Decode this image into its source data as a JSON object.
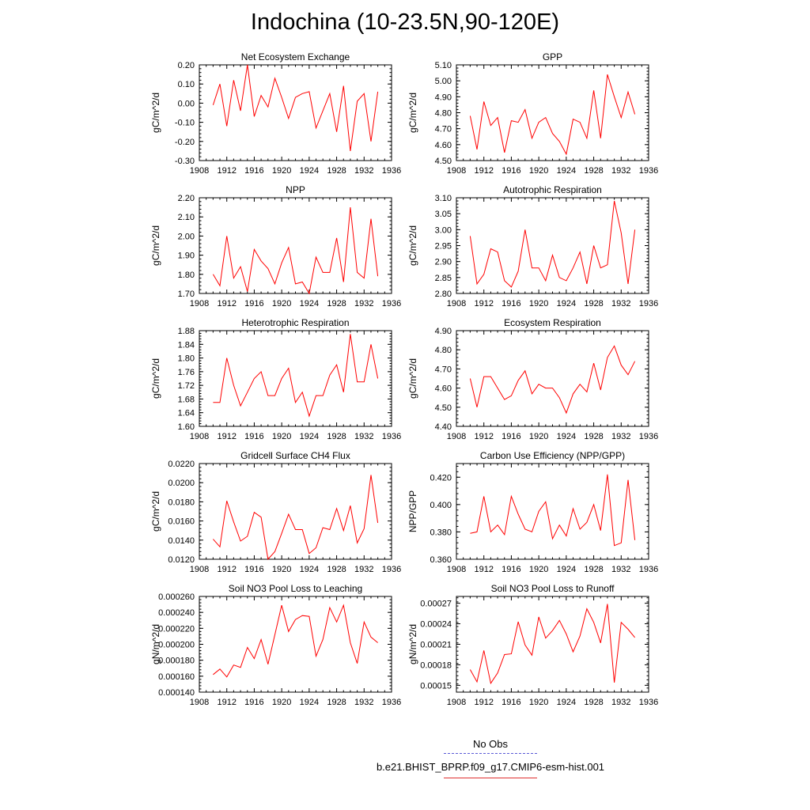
{
  "title": "Indochina (10-23.5N,90-120E)",
  "legend": {
    "obs_label": "No Obs",
    "model_label": "b.e21.BHIST_BPRP.f09_g17.CMIP6-esm-hist.001",
    "obs_color": "#5a5ad6",
    "model_color": "#ff0000"
  },
  "chart_data": [
    {
      "type": "line",
      "title": "Net Ecosystem Exchange",
      "ylabel": "gC/m^2/d",
      "xlim": [
        1908,
        1936
      ],
      "xticks": [
        1908,
        1912,
        1916,
        1920,
        1924,
        1928,
        1932,
        1936
      ],
      "ylim": [
        -0.3,
        0.2
      ],
      "yticks": [
        "-0.30",
        "-0.20",
        "-0.10",
        "0.00",
        "0.10",
        "0.20"
      ],
      "ytick_values": [
        -0.3,
        -0.2,
        -0.1,
        0.0,
        0.1,
        0.2
      ],
      "x": [
        1910,
        1911,
        1912,
        1913,
        1914,
        1915,
        1916,
        1917,
        1918,
        1919,
        1920,
        1921,
        1922,
        1923,
        1924,
        1925,
        1926,
        1927,
        1928,
        1929,
        1930,
        1931,
        1932,
        1933,
        1934
      ],
      "y": [
        -0.01,
        0.1,
        -0.12,
        0.12,
        -0.04,
        0.2,
        -0.07,
        0.04,
        -0.02,
        0.13,
        0.03,
        -0.08,
        0.03,
        0.05,
        0.06,
        -0.13,
        -0.04,
        0.05,
        -0.15,
        0.09,
        -0.25,
        0.01,
        0.05,
        -0.2,
        0.06
      ]
    },
    {
      "type": "line",
      "title": "GPP",
      "ylabel": "gC/m^2/d",
      "xlim": [
        1908,
        1936
      ],
      "xticks": [
        1908,
        1912,
        1916,
        1920,
        1924,
        1928,
        1932,
        1936
      ],
      "ylim": [
        4.5,
        5.1
      ],
      "yticks": [
        "4.50",
        "4.60",
        "4.70",
        "4.80",
        "4.90",
        "5.00",
        "5.10"
      ],
      "ytick_values": [
        4.5,
        4.6,
        4.7,
        4.8,
        4.9,
        5.0,
        5.1
      ],
      "x": [
        1910,
        1911,
        1912,
        1913,
        1914,
        1915,
        1916,
        1917,
        1918,
        1919,
        1920,
        1921,
        1922,
        1923,
        1924,
        1925,
        1926,
        1927,
        1928,
        1929,
        1930,
        1931,
        1932,
        1933,
        1934
      ],
      "y": [
        4.78,
        4.57,
        4.87,
        4.72,
        4.77,
        4.55,
        4.75,
        4.74,
        4.82,
        4.64,
        4.74,
        4.77,
        4.67,
        4.62,
        4.54,
        4.76,
        4.74,
        4.64,
        4.94,
        4.64,
        5.04,
        4.9,
        4.77,
        4.93,
        4.79
      ]
    },
    {
      "type": "line",
      "title": "NPP",
      "ylabel": "gC/m^2/d",
      "xlim": [
        1908,
        1936
      ],
      "xticks": [
        1908,
        1912,
        1916,
        1920,
        1924,
        1928,
        1932,
        1936
      ],
      "ylim": [
        1.7,
        2.2
      ],
      "yticks": [
        "1.70",
        "1.80",
        "1.90",
        "2.00",
        "2.10",
        "2.20"
      ],
      "ytick_values": [
        1.7,
        1.8,
        1.9,
        2.0,
        2.1,
        2.2
      ],
      "x": [
        1910,
        1911,
        1912,
        1913,
        1914,
        1915,
        1916,
        1917,
        1918,
        1919,
        1920,
        1921,
        1922,
        1923,
        1924,
        1925,
        1926,
        1927,
        1928,
        1929,
        1930,
        1931,
        1932,
        1933,
        1934
      ],
      "y": [
        1.8,
        1.74,
        2.0,
        1.78,
        1.84,
        1.71,
        1.93,
        1.87,
        1.83,
        1.75,
        1.86,
        1.94,
        1.75,
        1.76,
        1.7,
        1.89,
        1.81,
        1.81,
        1.99,
        1.76,
        2.15,
        1.81,
        1.78,
        2.09,
        1.79
      ]
    },
    {
      "type": "line",
      "title": "Autotrophic Respiration",
      "ylabel": "gC/m^2/d",
      "xlim": [
        1908,
        1936
      ],
      "xticks": [
        1908,
        1912,
        1916,
        1920,
        1924,
        1928,
        1932,
        1936
      ],
      "ylim": [
        2.8,
        3.1
      ],
      "yticks": [
        "2.80",
        "2.85",
        "2.90",
        "2.95",
        "3.00",
        "3.05",
        "3.10"
      ],
      "ytick_values": [
        2.8,
        2.85,
        2.9,
        2.95,
        3.0,
        3.05,
        3.1
      ],
      "x": [
        1910,
        1911,
        1912,
        1913,
        1914,
        1915,
        1916,
        1917,
        1918,
        1919,
        1920,
        1921,
        1922,
        1923,
        1924,
        1925,
        1926,
        1927,
        1928,
        1929,
        1930,
        1931,
        1932,
        1933,
        1934
      ],
      "y": [
        2.98,
        2.83,
        2.86,
        2.94,
        2.93,
        2.84,
        2.82,
        2.87,
        3.0,
        2.88,
        2.88,
        2.84,
        2.92,
        2.85,
        2.84,
        2.88,
        2.93,
        2.83,
        2.95,
        2.88,
        2.89,
        3.09,
        2.99,
        2.83,
        3.0
      ]
    },
    {
      "type": "line",
      "title": "Heterotrophic Respiration",
      "ylabel": "gC/m^2/d",
      "xlim": [
        1908,
        1936
      ],
      "xticks": [
        1908,
        1912,
        1916,
        1920,
        1924,
        1928,
        1932,
        1936
      ],
      "ylim": [
        1.6,
        1.88
      ],
      "yticks": [
        "1.60",
        "1.64",
        "1.68",
        "1.72",
        "1.76",
        "1.80",
        "1.84",
        "1.88"
      ],
      "ytick_values": [
        1.6,
        1.64,
        1.68,
        1.72,
        1.76,
        1.8,
        1.84,
        1.88
      ],
      "x": [
        1910,
        1911,
        1912,
        1913,
        1914,
        1915,
        1916,
        1917,
        1918,
        1919,
        1920,
        1921,
        1922,
        1923,
        1924,
        1925,
        1926,
        1927,
        1928,
        1929,
        1930,
        1931,
        1932,
        1933,
        1934
      ],
      "y": [
        1.67,
        1.67,
        1.8,
        1.72,
        1.66,
        1.7,
        1.74,
        1.76,
        1.69,
        1.69,
        1.74,
        1.77,
        1.67,
        1.7,
        1.63,
        1.69,
        1.69,
        1.75,
        1.78,
        1.7,
        1.87,
        1.73,
        1.73,
        1.84,
        1.74
      ]
    },
    {
      "type": "line",
      "title": "Ecosystem Respiration",
      "ylabel": "gC/m^2/d",
      "xlim": [
        1908,
        1936
      ],
      "xticks": [
        1908,
        1912,
        1916,
        1920,
        1924,
        1928,
        1932,
        1936
      ],
      "ylim": [
        4.4,
        4.9
      ],
      "yticks": [
        "4.40",
        "4.50",
        "4.60",
        "4.70",
        "4.80",
        "4.90"
      ],
      "ytick_values": [
        4.4,
        4.5,
        4.6,
        4.7,
        4.8,
        4.9
      ],
      "x": [
        1910,
        1911,
        1912,
        1913,
        1914,
        1915,
        1916,
        1917,
        1918,
        1919,
        1920,
        1921,
        1922,
        1923,
        1924,
        1925,
        1926,
        1927,
        1928,
        1929,
        1930,
        1931,
        1932,
        1933,
        1934
      ],
      "y": [
        4.65,
        4.5,
        4.66,
        4.66,
        4.6,
        4.54,
        4.56,
        4.64,
        4.69,
        4.57,
        4.62,
        4.6,
        4.6,
        4.55,
        4.47,
        4.57,
        4.62,
        4.58,
        4.73,
        4.59,
        4.76,
        4.82,
        4.72,
        4.67,
        4.74
      ]
    },
    {
      "type": "line",
      "title": "Gridcell Surface CH4 Flux",
      "ylabel": "gC/m^2/d",
      "xlim": [
        1908,
        1936
      ],
      "xticks": [
        1908,
        1912,
        1916,
        1920,
        1924,
        1928,
        1932,
        1936
      ],
      "ylim": [
        0.012,
        0.022
      ],
      "yticks": [
        "0.0120",
        "0.0140",
        "0.0160",
        "0.0180",
        "0.0200",
        "0.0220"
      ],
      "ytick_values": [
        0.012,
        0.014,
        0.016,
        0.018,
        0.02,
        0.022
      ],
      "x": [
        1910,
        1911,
        1912,
        1913,
        1914,
        1915,
        1916,
        1917,
        1918,
        1919,
        1920,
        1921,
        1922,
        1923,
        1924,
        1925,
        1926,
        1927,
        1928,
        1929,
        1930,
        1931,
        1932,
        1933,
        1934
      ],
      "y": [
        0.0141,
        0.0133,
        0.0181,
        0.0159,
        0.0139,
        0.0144,
        0.0169,
        0.0164,
        0.012,
        0.0128,
        0.0147,
        0.0167,
        0.0151,
        0.0151,
        0.0126,
        0.0132,
        0.0153,
        0.0151,
        0.0173,
        0.015,
        0.0176,
        0.0137,
        0.0152,
        0.0208,
        0.0158
      ]
    },
    {
      "type": "line",
      "title": "Carbon Use Efficiency (NPP/GPP)",
      "ylabel": "NPP/GPP",
      "xlim": [
        1908,
        1936
      ],
      "xticks": [
        1908,
        1912,
        1916,
        1920,
        1924,
        1928,
        1932,
        1936
      ],
      "ylim": [
        0.36,
        0.43
      ],
      "yticks": [
        "0.360",
        "0.380",
        "0.400",
        "0.420"
      ],
      "ytick_values": [
        0.36,
        0.38,
        0.4,
        0.42
      ],
      "x": [
        1910,
        1911,
        1912,
        1913,
        1914,
        1915,
        1916,
        1917,
        1918,
        1919,
        1920,
        1921,
        1922,
        1923,
        1924,
        1925,
        1926,
        1927,
        1928,
        1929,
        1930,
        1931,
        1932,
        1933,
        1934
      ],
      "y": [
        0.379,
        0.38,
        0.406,
        0.38,
        0.385,
        0.378,
        0.406,
        0.393,
        0.382,
        0.38,
        0.395,
        0.402,
        0.375,
        0.385,
        0.377,
        0.397,
        0.382,
        0.387,
        0.4,
        0.381,
        0.422,
        0.37,
        0.372,
        0.418,
        0.374
      ]
    },
    {
      "type": "line",
      "title": "Soil NO3 Pool Loss to Leaching",
      "ylabel": "gN/m^2/d",
      "xlim": [
        1908,
        1936
      ],
      "xticks": [
        1908,
        1912,
        1916,
        1920,
        1924,
        1928,
        1932,
        1936
      ],
      "ylim": [
        0.00014,
        0.00026
      ],
      "yticks": [
        "0.000140",
        "0.000160",
        "0.000180",
        "0.000200",
        "0.000220",
        "0.000240",
        "0.000260"
      ],
      "ytick_values": [
        0.00014,
        0.00016,
        0.00018,
        0.0002,
        0.00022,
        0.00024,
        0.00026
      ],
      "x": [
        1910,
        1911,
        1912,
        1913,
        1914,
        1915,
        1916,
        1917,
        1918,
        1919,
        1920,
        1921,
        1922,
        1923,
        1924,
        1925,
        1926,
        1927,
        1928,
        1929,
        1930,
        1931,
        1932,
        1933,
        1934
      ],
      "y": [
        0.000162,
        0.000169,
        0.000159,
        0.000174,
        0.000171,
        0.000196,
        0.000182,
        0.000206,
        0.000175,
        0.000212,
        0.000249,
        0.000216,
        0.000231,
        0.000236,
        0.000235,
        0.000185,
        0.000206,
        0.000246,
        0.000228,
        0.000249,
        0.000202,
        0.000176,
        0.000228,
        0.000209,
        0.000202
      ]
    },
    {
      "type": "line",
      "title": "Soil NO3 Pool Loss to Runoff",
      "ylabel": "gN/m^2/d",
      "xlim": [
        1908,
        1936
      ],
      "xticks": [
        1908,
        1912,
        1916,
        1920,
        1924,
        1928,
        1932,
        1936
      ],
      "ylim": [
        0.00014,
        0.00028
      ],
      "yticks": [
        "0.00015",
        "0.00018",
        "0.00021",
        "0.00024",
        "0.00027"
      ],
      "ytick_values": [
        0.00015,
        0.00018,
        0.00021,
        0.00024,
        0.00027
      ],
      "x": [
        1910,
        1911,
        1912,
        1913,
        1914,
        1915,
        1916,
        1917,
        1918,
        1919,
        1920,
        1921,
        1922,
        1923,
        1924,
        1925,
        1926,
        1927,
        1928,
        1929,
        1930,
        1931,
        1932,
        1933,
        1934
      ],
      "y": [
        0.000173,
        0.000155,
        0.000201,
        0.000153,
        0.000168,
        0.000195,
        0.000196,
        0.000243,
        0.000209,
        0.000194,
        0.00025,
        0.000219,
        0.00023,
        0.000245,
        0.000225,
        0.000199,
        0.000222,
        0.000262,
        0.000242,
        0.000212,
        0.000269,
        0.000154,
        0.000242,
        0.000232,
        0.00022
      ]
    }
  ]
}
